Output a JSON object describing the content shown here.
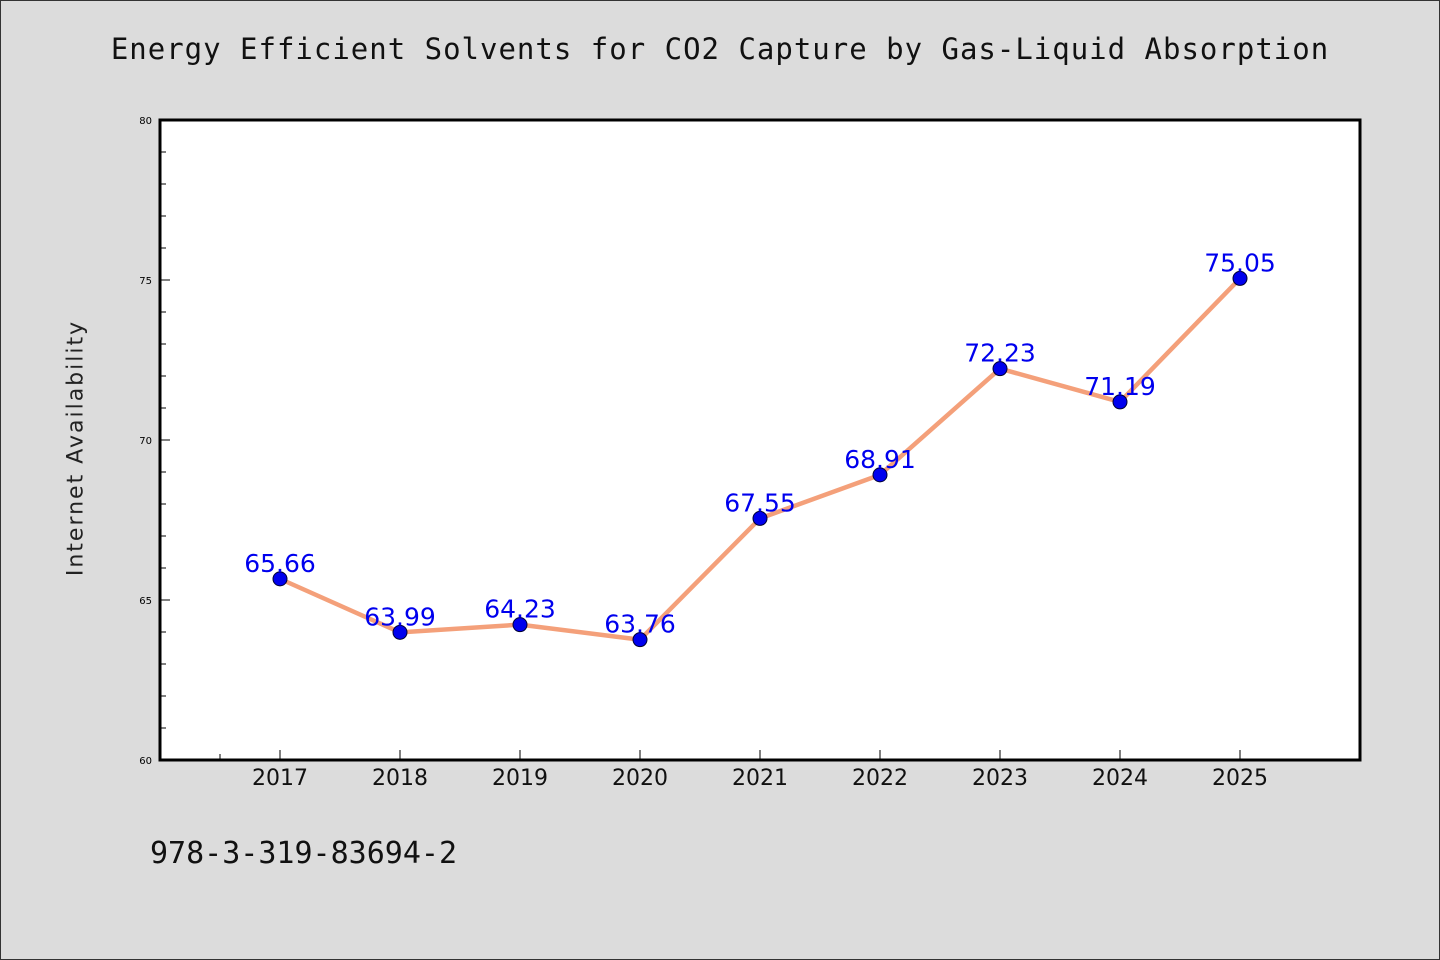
{
  "chart_data": {
    "type": "line",
    "title": "Energy Efficient Solvents for CO2 Capture by Gas-Liquid Absorption",
    "xlabel": "",
    "ylabel": "Internet Availability",
    "categories": [
      "2017",
      "2018",
      "2019",
      "2020",
      "2021",
      "2022",
      "2023",
      "2024",
      "2025"
    ],
    "values": [
      65.66,
      63.99,
      64.23,
      63.76,
      67.55,
      68.91,
      72.23,
      71.19,
      75.05
    ],
    "value_labels": [
      "65.66",
      "63.99",
      "64.23",
      "63.76",
      "67.55",
      "68.91",
      "72.23",
      "71.19",
      "75.05"
    ],
    "ylim": [
      60,
      80
    ],
    "yticks": [
      60,
      65,
      70,
      75,
      80
    ],
    "grid": false,
    "colors": {
      "line": "#f4a07a",
      "marker": "#0000ee",
      "label": "#0000ee",
      "plot_bg": "#ffffff",
      "page_bg": "#dcdcdc"
    }
  },
  "footer": {
    "isbn": "978-3-319-83694-2"
  }
}
